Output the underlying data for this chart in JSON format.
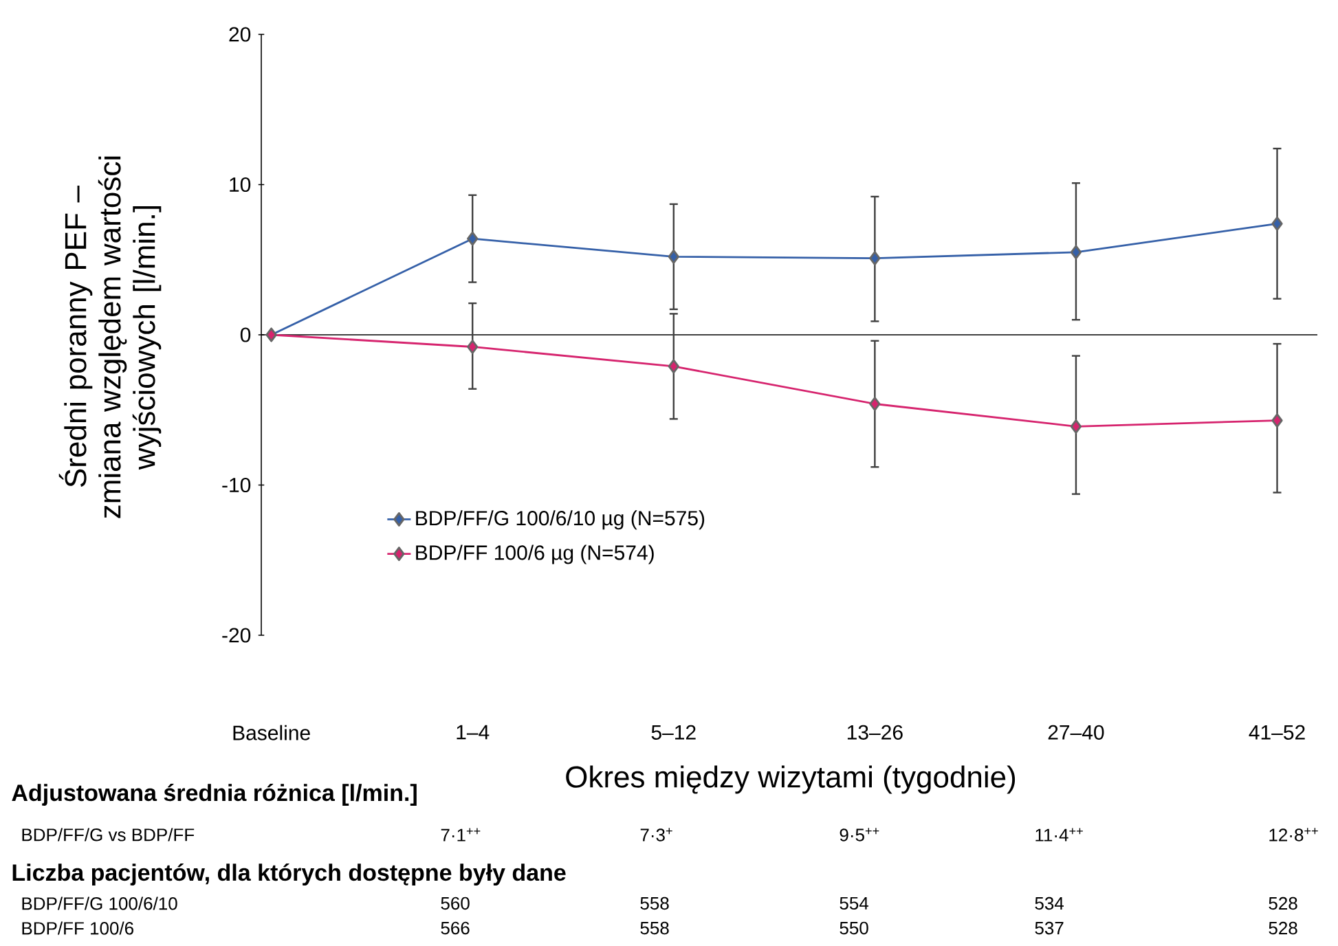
{
  "chart_data": {
    "type": "line",
    "xlabel": "Okres między wizytami (tygodnie)",
    "ylabel": "Średni poranny PEF – zmiana względem wartości wyjściowych [l/min.]",
    "categories": [
      "Baseline",
      "1–4",
      "5–12",
      "13–26",
      "27–40",
      "41–52"
    ],
    "series": [
      {
        "name": "BDP/FF/G 100/6/10 µg (N=575)",
        "color": "#3560a8",
        "values": [
          0,
          6.4,
          5.2,
          5.1,
          5.5,
          7.4
        ],
        "errors": [
          null,
          [
            3.5,
            9.3
          ],
          [
            1.7,
            8.7
          ],
          [
            0.9,
            9.2
          ],
          [
            1.0,
            10.1
          ],
          [
            2.4,
            12.4
          ]
        ]
      },
      {
        "name": "BDP/FF 100/6 µg (N=574)",
        "color": "#d6246e",
        "values": [
          0,
          -0.8,
          -2.1,
          -4.6,
          -6.1,
          -5.7
        ],
        "errors": [
          null,
          [
            -3.6,
            2.1
          ],
          [
            -5.6,
            1.4
          ],
          [
            -8.8,
            -0.4
          ],
          [
            -10.6,
            -1.4
          ],
          [
            -10.5,
            -0.6
          ]
        ]
      }
    ],
    "ylim": [
      -20,
      20
    ],
    "yticks": [
      -20,
      -10,
      0,
      10,
      20
    ],
    "ref_lines": [
      {
        "axis": "y",
        "value": 0,
        "color": "#000000"
      }
    ],
    "marker": "diamond",
    "line_style": "solid",
    "legend": "bottom left",
    "grid": false,
    "annotations": [
      "**Adjustowana średnia różnica [l/min.]**",
      "BDP/FF/G vs BDP/FF",
      "7·1$^{++}$",
      "7·3$^{+}$",
      "9·5$^{++}$",
      "11·4$^{++}$",
      "12·8$^{++}$",
      "**Liczba pacjentów, dla których dostępne były dane**",
      "BDP/FF/G 100/6/10",
      "560",
      "558",
      "554",
      "534",
      "528",
      "BDP/FF 100/6",
      "566",
      "558",
      "550",
      "537",
      "528"
    ]
  }
}
